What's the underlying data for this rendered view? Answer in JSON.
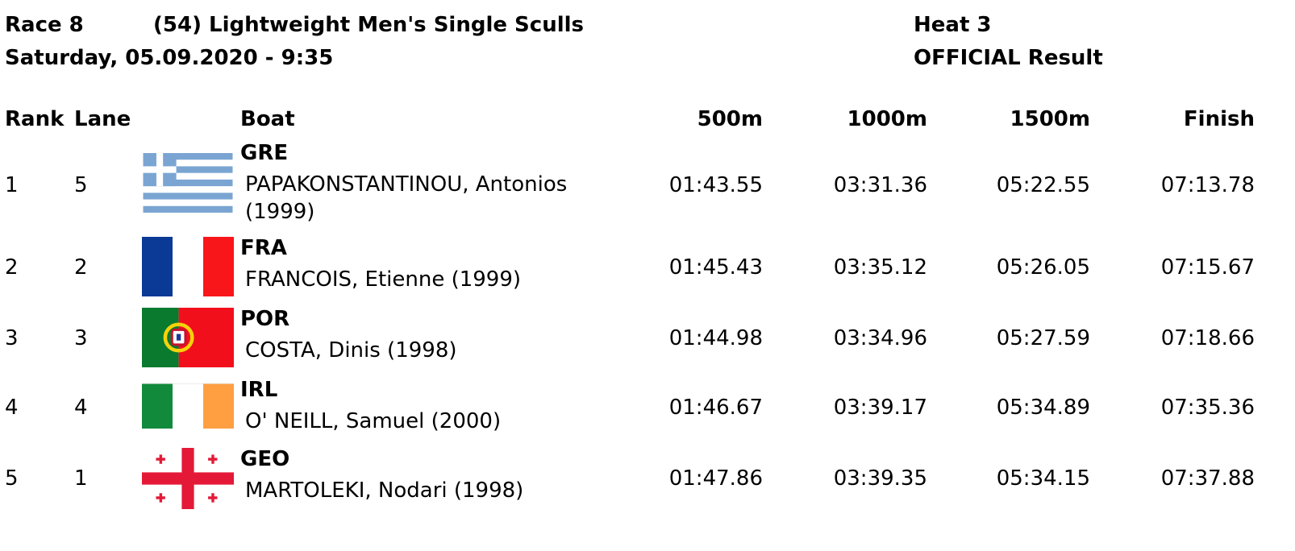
{
  "race": {
    "number": "Race 8",
    "event": "(54) Lightweight Men's Single Sculls",
    "date_time": "Saturday, 05.09.2020 - 9:35",
    "heat": "Heat 3",
    "status": "OFFICIAL Result"
  },
  "columns": {
    "rank": "Rank",
    "lane": "Lane",
    "boat": "Boat",
    "split_500": "500m",
    "split_1000": "1000m",
    "split_1500": "1500m",
    "finish": "Finish"
  },
  "results": [
    {
      "rank": "1",
      "lane": "5",
      "country": "GRE",
      "rower_line1": "PAPAKONSTANTINOU, Antonios",
      "rower_line2": "(1999)",
      "t500": "01:43.55",
      "t1000": "03:31.36",
      "t1500": "05:22.55",
      "finish": "07:13.78",
      "flag": "greece-flag"
    },
    {
      "rank": "2",
      "lane": "2",
      "country": "FRA",
      "rower_line1": "FRANCOIS, Etienne (1999)",
      "rower_line2": "",
      "t500": "01:45.43",
      "t1000": "03:35.12",
      "t1500": "05:26.05",
      "finish": "07:15.67",
      "flag": "france-flag"
    },
    {
      "rank": "3",
      "lane": "3",
      "country": "POR",
      "rower_line1": "COSTA, Dinis (1998)",
      "rower_line2": "",
      "t500": "01:44.98",
      "t1000": "03:34.96",
      "t1500": "05:27.59",
      "finish": "07:18.66",
      "flag": "portugal-flag"
    },
    {
      "rank": "4",
      "lane": "4",
      "country": "IRL",
      "rower_line1": "O' NEILL, Samuel (2000)",
      "rower_line2": "",
      "t500": "01:46.67",
      "t1000": "03:39.17",
      "t1500": "05:34.89",
      "finish": "07:35.36",
      "flag": "ireland-flag"
    },
    {
      "rank": "5",
      "lane": "1",
      "country": "GEO",
      "rower_line1": "MARTOLEKI, Nodari (1998)",
      "rower_line2": "",
      "t500": "01:47.86",
      "t1000": "03:39.35",
      "t1500": "05:34.15",
      "finish": "07:37.88",
      "flag": "georgia-flag"
    }
  ],
  "colors": {
    "greece_blue": "#7aa5d2",
    "france_blue": "#0a3a96",
    "france_red": "#f9161b",
    "portugal_green": "#0a7a2e",
    "portugal_red": "#f20f1c",
    "ireland_green": "#118a3c",
    "ireland_orange": "#ff9f42",
    "georgia_red": "#e41937"
  }
}
